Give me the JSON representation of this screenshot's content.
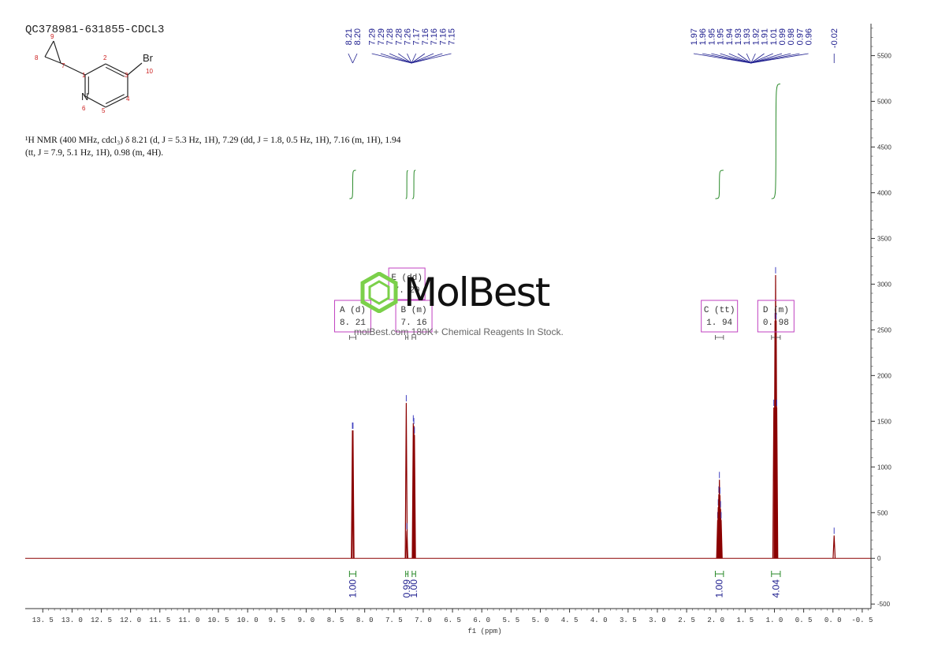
{
  "header": {
    "title": "QC378981-631855-CDCL3"
  },
  "nmr_text": {
    "line1": "¹H NMR (400 MHz, cdcl₃) δ 8.21 (d, J = 5.3 Hz, 1H), 7.29 (dd, J = 1.8, 0.5 Hz, 1H), 7.16 (m, 1H), 1.94",
    "line2": "(tt, J = 7.9, 5.1 Hz, 1H), 0.98 (m, 4H)."
  },
  "structure": {
    "atom_labels": [
      "N",
      "Br"
    ],
    "atom_numbers": [
      "1",
      "2",
      "3",
      "4",
      "5",
      "6",
      "7",
      "8",
      "9",
      "10"
    ]
  },
  "watermark": {
    "logo_text": "MolBest",
    "tagline": "molBest.com 180K+ Chemical Reagents In Stock."
  },
  "colors": {
    "spectrum": "#8b0000",
    "integral": "#2a8a2a",
    "peak_label": "#1f1f8f",
    "multiplet_box": "#c040c0"
  },
  "chart_data": {
    "type": "line",
    "title": "",
    "xlabel": "f1 (ppm)",
    "ylabel": "",
    "x_reversed": true,
    "xlim": [
      13.8,
      -0.65
    ],
    "ylim": [
      -550,
      5850
    ],
    "x_ticks": [
      "13.5",
      "13.0",
      "12.5",
      "12.0",
      "11.5",
      "11.0",
      "10.5",
      "10.0",
      "9.5",
      "9.0",
      "8.5",
      "8.0",
      "7.5",
      "7.0",
      "6.5",
      "6.0",
      "5.5",
      "5.0",
      "4.5",
      "4.0",
      "3.5",
      "3.0",
      "2.5",
      "2.0",
      "1.5",
      "1.0",
      "0.5",
      "0.0",
      "-0.5"
    ],
    "y_ticks": [
      "5500",
      "5000",
      "4500",
      "4000",
      "3500",
      "3000",
      "2500",
      "2000",
      "1500",
      "1000",
      "500",
      "0",
      "-500"
    ],
    "peaks": [
      {
        "ppm": 8.21,
        "height": 1400
      },
      {
        "ppm": 8.2,
        "height": 1400
      },
      {
        "ppm": 7.29,
        "height": 1700
      },
      {
        "ppm": 7.28,
        "height": 300
      },
      {
        "ppm": 7.17,
        "height": 1480
      },
      {
        "ppm": 7.16,
        "height": 1450
      },
      {
        "ppm": 7.15,
        "height": 1350
      },
      {
        "ppm": 1.97,
        "height": 420
      },
      {
        "ppm": 1.96,
        "height": 560
      },
      {
        "ppm": 1.95,
        "height": 700
      },
      {
        "ppm": 1.94,
        "height": 860
      },
      {
        "ppm": 1.93,
        "height": 690
      },
      {
        "ppm": 1.92,
        "height": 540
      },
      {
        "ppm": 1.91,
        "height": 420
      },
      {
        "ppm": 1.01,
        "height": 1650
      },
      {
        "ppm": 0.99,
        "height": 2600
      },
      {
        "ppm": 0.98,
        "height": 3100
      },
      {
        "ppm": 0.97,
        "height": 2600
      },
      {
        "ppm": 0.96,
        "height": 1650
      },
      {
        "ppm": -0.02,
        "height": 250
      }
    ],
    "peak_labels": [
      {
        "group": [
          "8.21",
          "8.20"
        ],
        "at": 8.205
      },
      {
        "group": [
          "7.29",
          "7.29",
          "7.28",
          "7.28",
          "7.26",
          "7.17",
          "7.16",
          "7.16",
          "7.16",
          "7.15"
        ],
        "at": 7.2
      },
      {
        "group": [
          "1.97",
          "1.96",
          "1.95",
          "1.95",
          "1.94",
          "1.93",
          "1.93",
          "1.92",
          "1.91",
          "1.01",
          "0.99",
          "0.98",
          "0.97",
          "0.96"
        ],
        "at": 1.4
      },
      {
        "group": [
          "-0.02"
        ],
        "at": -0.02
      }
    ],
    "multiplets": [
      {
        "label": "A (d)",
        "shift": "8.21",
        "x1": 8.26,
        "x2": 8.15
      },
      {
        "label": "E (dd)",
        "shift": "7.29",
        "x1": 7.3,
        "x2": 7.26
      },
      {
        "label": "B (m)",
        "shift": "7.16",
        "x1": 7.19,
        "x2": 7.13
      },
      {
        "label": "C (tt)",
        "shift": "1.94",
        "x1": 2.01,
        "x2": 1.87
      },
      {
        "label": "D (m)",
        "shift": "0.98",
        "x1": 1.05,
        "x2": 0.9
      }
    ],
    "integrals": [
      {
        "value": "1.00",
        "x1": 8.26,
        "x2": 8.15
      },
      {
        "value": "0.99",
        "x1": 7.3,
        "x2": 7.26
      },
      {
        "value": "1.00",
        "x1": 7.19,
        "x2": 7.13
      },
      {
        "value": "1.00",
        "x1": 2.01,
        "x2": 1.87
      },
      {
        "value": "4.04",
        "x1": 1.05,
        "x2": 0.9
      }
    ]
  }
}
